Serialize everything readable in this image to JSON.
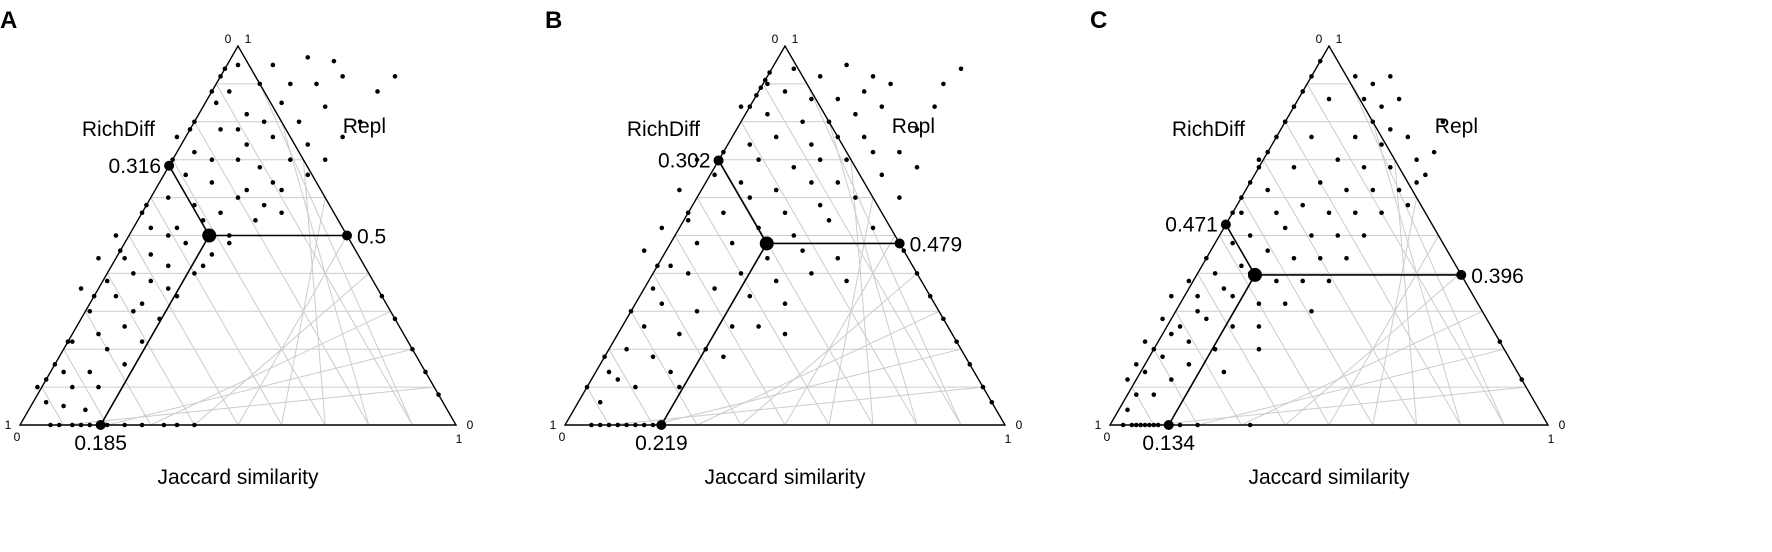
{
  "chart_data": [
    {
      "type": "scatter",
      "subtype": "ternary",
      "panel": "A",
      "left_label": "RichDiff",
      "right_label": "Repl",
      "xlabel": "Jaccard similarity",
      "corner_ticks": {
        "top_left": "0",
        "top_right": "1",
        "left": "1",
        "bottom_left": "0",
        "bottom_right": "1",
        "right": "0"
      },
      "centroid": {
        "similarity": 0.185,
        "richdiff": 0.316,
        "repl": 0.5
      },
      "labels": {
        "richdiff": "0.316",
        "repl": "0.5",
        "similarity": "0.185"
      },
      "points": [
        [
          0.5,
          0.05
        ],
        [
          0.58,
          0.05
        ],
        [
          0.66,
          0.03
        ],
        [
          0.72,
          0.04
        ],
        [
          0.55,
          0.1
        ],
        [
          0.62,
          0.1
        ],
        [
          0.68,
          0.1
        ],
        [
          0.74,
          0.08
        ],
        [
          0.45,
          0.15
        ],
        [
          0.52,
          0.18
        ],
        [
          0.6,
          0.15
        ],
        [
          0.64,
          0.2
        ],
        [
          0.7,
          0.16
        ],
        [
          0.46,
          0.22
        ],
        [
          0.58,
          0.24
        ],
        [
          0.66,
          0.26
        ],
        [
          0.4,
          0.28
        ],
        [
          0.5,
          0.3
        ],
        [
          0.55,
          0.32
        ],
        [
          0.62,
          0.3
        ],
        [
          0.44,
          0.36
        ],
        [
          0.52,
          0.38
        ],
        [
          0.58,
          0.36
        ],
        [
          0.4,
          0.42
        ],
        [
          0.46,
          0.44
        ],
        [
          0.54,
          0.46
        ],
        [
          0.36,
          0.48
        ],
        [
          0.48,
          0.5
        ],
        [
          0.6,
          0.44
        ],
        [
          0.38,
          0.52
        ],
        [
          0.44,
          0.55
        ],
        [
          0.34,
          0.58
        ],
        [
          0.4,
          0.6
        ],
        [
          0.3,
          0.62
        ],
        [
          0.36,
          0.66
        ],
        [
          0.28,
          0.68
        ],
        [
          0.32,
          0.72
        ],
        [
          0.24,
          0.74
        ],
        [
          0.28,
          0.78
        ],
        [
          0.2,
          0.8
        ],
        [
          0.24,
          0.84
        ],
        [
          0.16,
          0.86
        ],
        [
          0.18,
          0.9
        ],
        [
          0.12,
          0.9
        ],
        [
          0.06,
          0.94
        ],
        [
          0.1,
          0.95
        ],
        [
          0.15,
          0.96
        ],
        [
          0.34,
          0.5
        ],
        [
          0.3,
          0.55
        ],
        [
          0.26,
          0.6
        ],
        [
          0.22,
          0.66
        ],
        [
          0.5,
          0.4
        ],
        [
          0.56,
          0.42
        ],
        [
          0.42,
          0.46
        ],
        [
          0.66,
          0.34
        ],
        [
          0.7,
          0.3
        ],
        [
          0.74,
          0.24
        ],
        [
          0.78,
          0.2
        ],
        [
          0.82,
          0.12
        ],
        [
          0.86,
          0.08
        ],
        [
          0.3,
          0.48
        ],
        [
          0.24,
          0.56
        ],
        [
          0.2,
          0.62
        ],
        [
          0.16,
          0.7
        ],
        [
          0.12,
          0.78
        ],
        [
          0.08,
          0.84
        ],
        [
          0.04,
          0.9
        ],
        [
          0.1,
          0.86
        ],
        [
          0.18,
          0.76
        ],
        [
          0.26,
          0.7
        ],
        [
          0.34,
          0.64
        ],
        [
          0.42,
          0.58
        ],
        [
          0.48,
          0.52
        ],
        [
          0.52,
          0.26
        ],
        [
          0.56,
          0.2
        ],
        [
          0.48,
          0.12
        ],
        [
          0.5,
          0.22
        ],
        [
          0.44,
          0.3
        ],
        [
          0.38,
          0.34
        ],
        [
          0.46,
          0.08
        ],
        [
          0.4,
          0.2
        ],
        [
          0.36,
          0.24
        ],
        [
          0.34,
          0.4
        ],
        [
          0.28,
          0.44
        ],
        [
          0.22,
          0.5
        ],
        [
          0.18,
          0.56
        ],
        [
          0.14,
          0.64
        ],
        [
          0.6,
          0.38
        ]
      ],
      "bottom_points": [
        0.07,
        0.09,
        0.12,
        0.14,
        0.16,
        0.18,
        0.2,
        0.24,
        0.28,
        0.33,
        0.36,
        0.4
      ],
      "left_edge_points": [
        0.06,
        0.12,
        0.22,
        0.3,
        0.42,
        0.54,
        0.66,
        0.78,
        0.88
      ],
      "right_edge_points": [
        0.08,
        0.14,
        0.2,
        0.28,
        0.34
      ]
    },
    {
      "type": "scatter",
      "subtype": "ternary",
      "panel": "B",
      "left_label": "RichDiff",
      "right_label": "Repl",
      "xlabel": "Jaccard similarity",
      "corner_ticks": {
        "top_left": "0",
        "top_right": "1",
        "left": "1",
        "bottom_left": "0",
        "bottom_right": "1",
        "right": "0"
      },
      "centroid": {
        "similarity": 0.219,
        "richdiff": 0.302,
        "repl": 0.479
      },
      "labels": {
        "richdiff": "0.302",
        "repl": "0.479",
        "similarity": "0.219"
      },
      "points": [
        [
          0.52,
          0.06
        ],
        [
          0.58,
          0.08
        ],
        [
          0.64,
          0.05
        ],
        [
          0.7,
          0.08
        ],
        [
          0.5,
          0.12
        ],
        [
          0.56,
          0.14
        ],
        [
          0.62,
          0.14
        ],
        [
          0.68,
          0.12
        ],
        [
          0.74,
          0.1
        ],
        [
          0.46,
          0.18
        ],
        [
          0.54,
          0.2
        ],
        [
          0.6,
          0.2
        ],
        [
          0.66,
          0.18
        ],
        [
          0.72,
          0.16
        ],
        [
          0.48,
          0.24
        ],
        [
          0.56,
          0.26
        ],
        [
          0.62,
          0.24
        ],
        [
          0.68,
          0.24
        ],
        [
          0.44,
          0.3
        ],
        [
          0.52,
          0.32
        ],
        [
          0.58,
          0.3
        ],
        [
          0.64,
          0.3
        ],
        [
          0.7,
          0.28
        ],
        [
          0.48,
          0.38
        ],
        [
          0.56,
          0.36
        ],
        [
          0.62,
          0.36
        ],
        [
          0.42,
          0.4
        ],
        [
          0.5,
          0.44
        ],
        [
          0.58,
          0.42
        ],
        [
          0.44,
          0.48
        ],
        [
          0.52,
          0.5
        ],
        [
          0.6,
          0.46
        ],
        [
          0.38,
          0.52
        ],
        [
          0.46,
          0.56
        ],
        [
          0.54,
          0.54
        ],
        [
          0.4,
          0.6
        ],
        [
          0.48,
          0.62
        ],
        [
          0.34,
          0.64
        ],
        [
          0.42,
          0.66
        ],
        [
          0.3,
          0.7
        ],
        [
          0.38,
          0.74
        ],
        [
          0.26,
          0.76
        ],
        [
          0.32,
          0.8
        ],
        [
          0.2,
          0.82
        ],
        [
          0.24,
          0.86
        ],
        [
          0.12,
          0.88
        ],
        [
          0.16,
          0.9
        ],
        [
          0.08,
          0.94
        ],
        [
          0.28,
          0.6
        ],
        [
          0.22,
          0.68
        ],
        [
          0.3,
          0.52
        ],
        [
          0.36,
          0.44
        ],
        [
          0.4,
          0.36
        ],
        [
          0.66,
          0.4
        ],
        [
          0.72,
          0.34
        ],
        [
          0.76,
          0.28
        ],
        [
          0.8,
          0.22
        ],
        [
          0.84,
          0.16
        ],
        [
          0.86,
          0.1
        ],
        [
          0.9,
          0.06
        ],
        [
          0.34,
          0.34
        ],
        [
          0.28,
          0.46
        ],
        [
          0.24,
          0.58
        ],
        [
          0.2,
          0.64
        ],
        [
          0.18,
          0.74
        ],
        [
          0.14,
          0.8
        ],
        [
          0.1,
          0.86
        ],
        [
          0.36,
          0.82
        ],
        [
          0.44,
          0.74
        ],
        [
          0.5,
          0.68
        ],
        [
          0.56,
          0.6
        ],
        [
          0.62,
          0.56
        ],
        [
          0.7,
          0.48
        ],
        [
          0.76,
          0.4
        ],
        [
          0.8,
          0.32
        ],
        [
          0.46,
          0.1
        ],
        [
          0.4,
          0.16
        ],
        [
          0.42,
          0.26
        ],
        [
          0.36,
          0.28
        ],
        [
          0.26,
          0.38
        ],
        [
          0.22,
          0.48
        ],
        [
          0.18,
          0.54
        ],
        [
          0.3,
          0.3
        ],
        [
          0.64,
          0.62
        ],
        [
          0.5,
          0.76
        ],
        [
          0.26,
          0.9
        ]
      ],
      "bottom_points": [
        0.06,
        0.08,
        0.1,
        0.12,
        0.14,
        0.16,
        0.18,
        0.2,
        0.22
      ],
      "left_edge_points": [
        0.07,
        0.09,
        0.11,
        0.13,
        0.16,
        0.3,
        0.44,
        0.58,
        0.7,
        0.82,
        0.9
      ],
      "right_edge_points": [
        0.06,
        0.1,
        0.16,
        0.22,
        0.28,
        0.34,
        0.4,
        0.46
      ]
    },
    {
      "type": "scatter",
      "subtype": "ternary",
      "panel": "C",
      "left_label": "RichDiff",
      "right_label": "Repl",
      "xlabel": "Jaccard similarity",
      "corner_ticks": {
        "top_left": "0",
        "top_right": "1",
        "left": "1",
        "bottom_left": "0",
        "bottom_right": "1",
        "right": "0"
      },
      "centroid": {
        "similarity": 0.134,
        "richdiff": 0.471,
        "repl": 0.396
      },
      "labels": {
        "richdiff": "0.471",
        "repl": "0.396",
        "similarity": "0.134"
      },
      "points": [
        [
          0.56,
          0.08
        ],
        [
          0.6,
          0.1
        ],
        [
          0.64,
          0.08
        ],
        [
          0.58,
          0.14
        ],
        [
          0.62,
          0.16
        ],
        [
          0.66,
          0.14
        ],
        [
          0.6,
          0.2
        ],
        [
          0.64,
          0.22
        ],
        [
          0.56,
          0.24
        ],
        [
          0.62,
          0.26
        ],
        [
          0.68,
          0.24
        ],
        [
          0.52,
          0.3
        ],
        [
          0.58,
          0.32
        ],
        [
          0.64,
          0.32
        ],
        [
          0.7,
          0.3
        ],
        [
          0.48,
          0.36
        ],
        [
          0.54,
          0.38
        ],
        [
          0.6,
          0.38
        ],
        [
          0.66,
          0.38
        ],
        [
          0.72,
          0.34
        ],
        [
          0.44,
          0.42
        ],
        [
          0.5,
          0.44
        ],
        [
          0.56,
          0.44
        ],
        [
          0.62,
          0.44
        ],
        [
          0.68,
          0.42
        ],
        [
          0.4,
          0.48
        ],
        [
          0.46,
          0.5
        ],
        [
          0.52,
          0.5
        ],
        [
          0.58,
          0.5
        ],
        [
          0.36,
          0.54
        ],
        [
          0.42,
          0.56
        ],
        [
          0.48,
          0.56
        ],
        [
          0.54,
          0.56
        ],
        [
          0.32,
          0.6
        ],
        [
          0.38,
          0.62
        ],
        [
          0.44,
          0.62
        ],
        [
          0.5,
          0.62
        ],
        [
          0.28,
          0.66
        ],
        [
          0.34,
          0.68
        ],
        [
          0.4,
          0.68
        ],
        [
          0.46,
          0.7
        ],
        [
          0.22,
          0.72
        ],
        [
          0.28,
          0.74
        ],
        [
          0.34,
          0.74
        ],
        [
          0.18,
          0.78
        ],
        [
          0.24,
          0.8
        ],
        [
          0.12,
          0.82
        ],
        [
          0.18,
          0.84
        ],
        [
          0.08,
          0.86
        ],
        [
          0.14,
          0.88
        ],
        [
          0.06,
          0.92
        ],
        [
          0.1,
          0.92
        ],
        [
          0.04,
          0.96
        ],
        [
          0.2,
          0.7
        ],
        [
          0.16,
          0.74
        ],
        [
          0.26,
          0.64
        ],
        [
          0.3,
          0.58
        ],
        [
          0.24,
          0.6
        ],
        [
          0.2,
          0.66
        ],
        [
          0.14,
          0.76
        ],
        [
          0.1,
          0.8
        ],
        [
          0.12,
          0.72
        ],
        [
          0.18,
          0.62
        ],
        [
          0.08,
          0.78
        ],
        [
          0.06,
          0.84
        ],
        [
          0.22,
          0.56
        ],
        [
          0.28,
          0.52
        ],
        [
          0.74,
          0.28
        ],
        [
          0.7,
          0.36
        ],
        [
          0.76,
          0.2
        ],
        [
          0.3,
          0.44
        ],
        [
          0.36,
          0.38
        ],
        [
          0.42,
          0.32
        ],
        [
          0.4,
          0.2
        ],
        [
          0.46,
          0.24
        ],
        [
          0.5,
          0.14
        ],
        [
          0.34,
          0.3
        ],
        [
          0.32,
          0.5
        ],
        [
          0.38,
          0.44
        ],
        [
          0.26,
          0.86
        ],
        [
          0.34,
          0.8
        ],
        [
          0.14,
          0.66
        ],
        [
          0.04,
          0.88
        ]
      ],
      "bottom_points": [
        0.03,
        0.05,
        0.06,
        0.07,
        0.08,
        0.09,
        0.1,
        0.11,
        0.13,
        0.16,
        0.2,
        0.32
      ],
      "left_edge_points": [
        0.04,
        0.08,
        0.12,
        0.16,
        0.2,
        0.24,
        0.28,
        0.32,
        0.36,
        0.4,
        0.44
      ],
      "right_edge_points": [
        0.12,
        0.22
      ]
    }
  ]
}
